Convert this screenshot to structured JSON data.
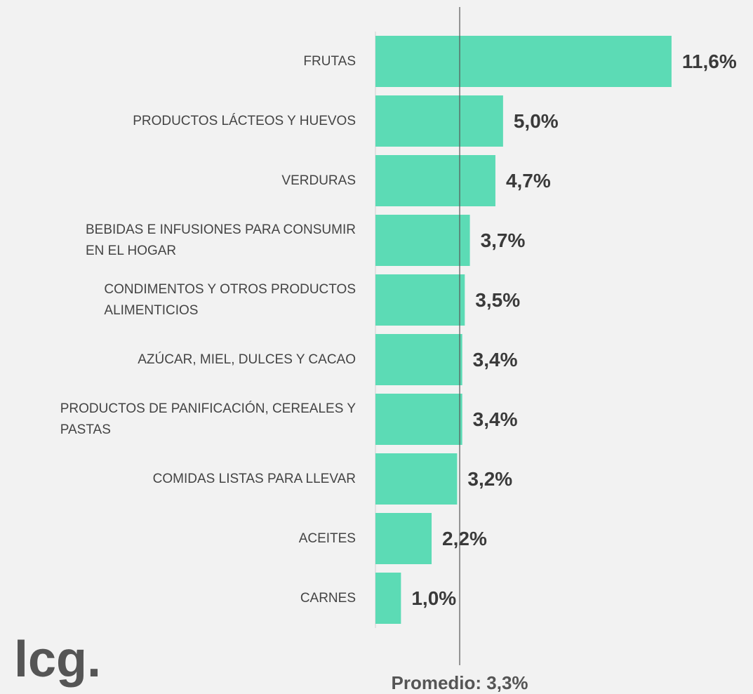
{
  "chart_data": {
    "type": "bar",
    "orientation": "horizontal",
    "categories": [
      "FRUTAS",
      "PRODUCTOS LÁCTEOS Y HUEVOS",
      "VERDURAS",
      "BEBIDAS E INFUSIONES PARA CONSUMIR\nEN EL HOGAR",
      "CONDIMENTOS Y OTROS PRODUCTOS\nALIMENTICIOS",
      "AZÚCAR, MIEL, DULCES Y CACAO",
      "PRODUCTOS DE PANIFICACIÓN, CEREALES Y\nPASTAS",
      "COMIDAS LISTAS PARA LLEVAR",
      "ACEITES",
      "CARNES"
    ],
    "values": [
      11.6,
      5.0,
      4.7,
      3.7,
      3.5,
      3.4,
      3.4,
      3.2,
      2.2,
      1.0
    ],
    "value_labels": [
      "11,6%",
      "5,0%",
      "4,7%",
      "3,7%",
      "3,5%",
      "3,4%",
      "3,4%",
      "3,2%",
      "2,2%",
      "1,0%"
    ],
    "color": "#5cdbb5",
    "xlim": [
      0,
      12.4
    ],
    "average": 3.3,
    "average_label": "Promedio: 3,3%",
    "logo": "lcg."
  }
}
